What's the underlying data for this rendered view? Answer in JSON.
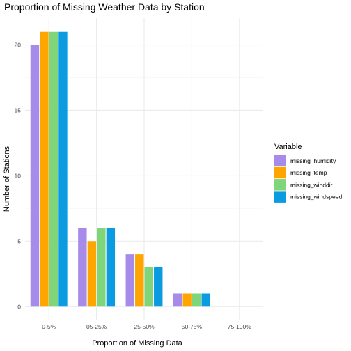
{
  "chart_data": {
    "type": "bar",
    "title": "Proportion of Missing Weather Data by Station",
    "xlabel": "Proportion of Missing Data",
    "ylabel": "Number of Stations",
    "categories": [
      "0-5%",
      "05-25%",
      "25-50%",
      "50-75%",
      "75-100%"
    ],
    "ylim": [
      0,
      21
    ],
    "yticks": [
      0,
      5,
      10,
      15,
      20
    ],
    "grid": true,
    "legend_position": "right",
    "legend_title": "Variable",
    "series": [
      {
        "name": "missing_humidity",
        "color": "#a78bea",
        "values": [
          20,
          6,
          4,
          1,
          0
        ]
      },
      {
        "name": "missing_temp",
        "color": "#ffa500",
        "values": [
          21,
          5,
          4,
          1,
          0
        ]
      },
      {
        "name": "missing_winddir",
        "color": "#7fd67a",
        "values": [
          21,
          6,
          3,
          1,
          0
        ]
      },
      {
        "name": "missing_windspeed",
        "color": "#0b9be0",
        "values": [
          21,
          6,
          3,
          1,
          0
        ]
      }
    ]
  }
}
